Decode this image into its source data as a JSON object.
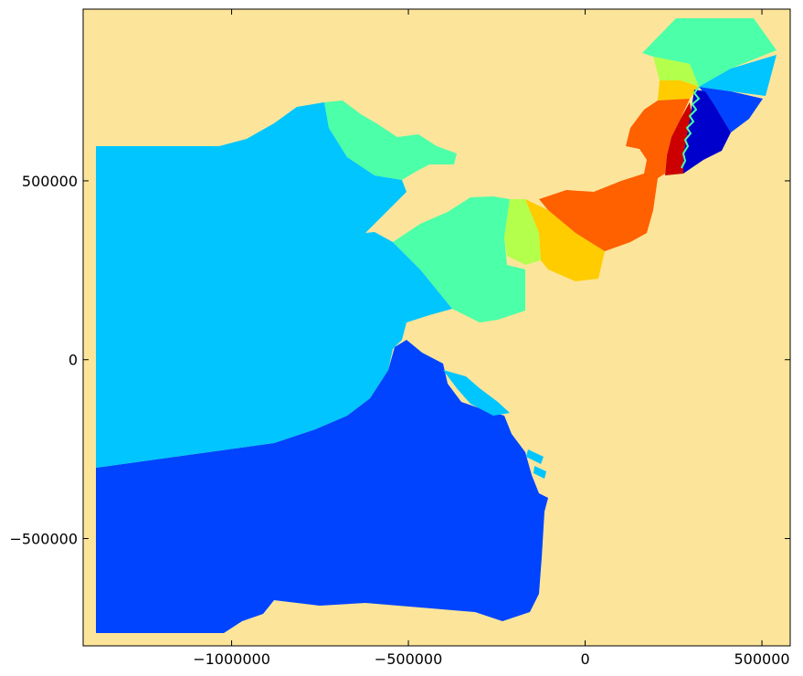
{
  "chart_data": {
    "type": "heatmap",
    "title": "",
    "xlabel": "",
    "ylabel": "",
    "xlim": [
      -1420000,
      580000
    ],
    "ylim": [
      -800000,
      980000
    ],
    "colormap": "jet",
    "land_color": "#fce59a",
    "x_ticks": [
      {
        "value": -1000000,
        "label": "−1000000"
      },
      {
        "value": -500000,
        "label": "−500000"
      },
      {
        "value": 0,
        "label": "0"
      },
      {
        "value": 500000,
        "label": "500000"
      }
    ],
    "y_ticks": [
      {
        "value": 500000,
        "label": "500000"
      },
      {
        "value": 0,
        "label": "0"
      },
      {
        "value": -500000,
        "label": "−500000"
      }
    ],
    "zone_colors": {
      "deep_blue": "#0000cc",
      "blue": "#0044ff",
      "cyan": "#00c5ff",
      "aquamarine": "#4cffa9",
      "yellow_green": "#b4ff4c",
      "yellow": "#ffcc00",
      "orange": "#ff6000",
      "red": "#cc0000"
    }
  }
}
